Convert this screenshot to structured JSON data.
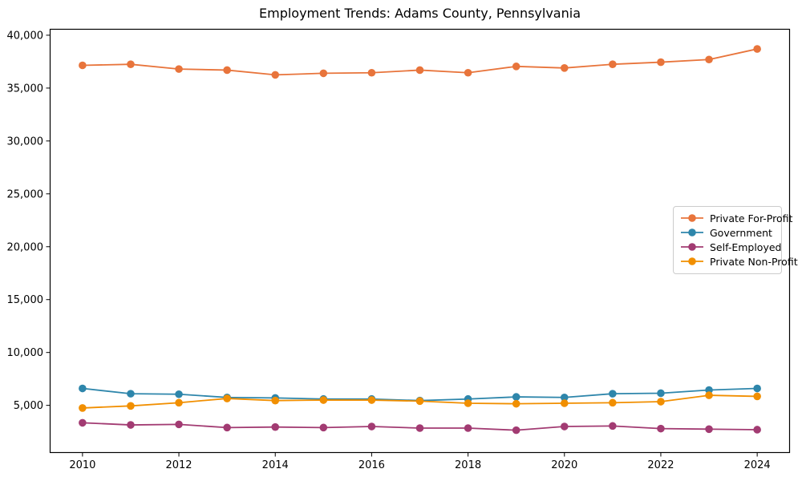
{
  "chart_data": {
    "type": "line",
    "title": "Employment Trends: Adams County, Pennsylvania",
    "xlabel": "",
    "ylabel": "",
    "x": [
      2010,
      2011,
      2012,
      2013,
      2014,
      2015,
      2016,
      2017,
      2018,
      2019,
      2020,
      2021,
      2022,
      2023,
      2024
    ],
    "series": [
      {
        "name": "Private For-Profit",
        "color": "#E8743B",
        "values": [
          37150,
          37250,
          36800,
          36700,
          36250,
          36400,
          36450,
          36700,
          36450,
          37050,
          36900,
          37250,
          37450,
          37700,
          38700
        ]
      },
      {
        "name": "Government",
        "color": "#2E86AB",
        "values": [
          6600,
          6100,
          6050,
          5750,
          5700,
          5600,
          5600,
          5450,
          5600,
          5800,
          5750,
          6100,
          6150,
          6450,
          6600
        ]
      },
      {
        "name": "Self-Employed",
        "color": "#A23B72",
        "values": [
          3350,
          3150,
          3200,
          2900,
          2950,
          2900,
          3000,
          2850,
          2850,
          2650,
          3000,
          3050,
          2800,
          2750,
          2700
        ]
      },
      {
        "name": "Private Non-Profit",
        "color": "#F18F01",
        "values": [
          4750,
          4950,
          5250,
          5650,
          5450,
          5500,
          5500,
          5400,
          5200,
          5150,
          5200,
          5250,
          5350,
          5950,
          5850
        ]
      }
    ],
    "xticks": [
      2010,
      2012,
      2014,
      2016,
      2018,
      2020,
      2022,
      2024
    ],
    "yticks": [
      5000,
      10000,
      15000,
      20000,
      25000,
      30000,
      35000,
      40000
    ],
    "xlim": [
      2009.32,
      2024.68
    ],
    "ylim": [
      500,
      40600
    ],
    "grid": false,
    "legend_position": "center-right",
    "background_color": "#ffffff",
    "axis_color": "#000000",
    "legend_border_color": "#cccccc"
  }
}
